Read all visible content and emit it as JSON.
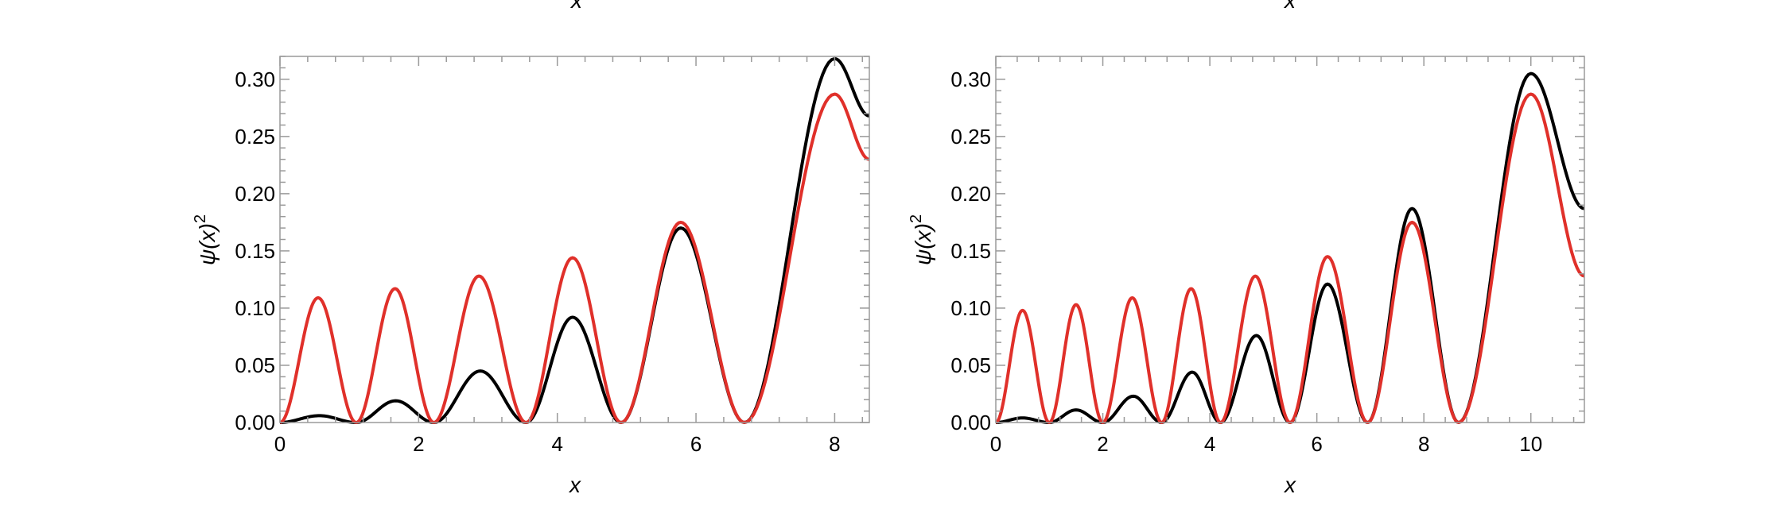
{
  "chart_data": [
    {
      "type": "line",
      "xlabel": "x",
      "ylabel": "ψ(x)",
      "ylabel_superscript": "2",
      "top_label": "x",
      "xlim": [
        0,
        8.5
      ],
      "ylim": [
        0,
        0.32
      ],
      "xticks": [
        0,
        2,
        4,
        6,
        8
      ],
      "xtick_labels": [
        "0",
        "2",
        "4",
        "6",
        "8"
      ],
      "yticks": [
        0,
        0.05,
        0.1,
        0.15,
        0.2,
        0.25,
        0.3
      ],
      "ytick_labels": [
        "0.00",
        "0.05",
        "0.10",
        "0.15",
        "0.20",
        "0.25",
        "0.30"
      ],
      "grid": false,
      "series": [
        {
          "color": "#000000",
          "x": [
            0,
            0.57,
            1.1,
            1.67,
            2.22,
            2.89,
            3.55,
            4.22,
            4.92,
            5.78,
            6.7,
            8.0,
            8.5
          ],
          "y": [
            0,
            0.006,
            0,
            0.019,
            0,
            0.045,
            0,
            0.092,
            0,
            0.17,
            0,
            0.318,
            0.268
          ]
        },
        {
          "color": "#e0302a",
          "x": [
            0,
            0.55,
            1.1,
            1.66,
            2.22,
            2.87,
            3.55,
            4.22,
            4.92,
            5.78,
            6.7,
            8.0,
            8.5
          ],
          "y": [
            0,
            0.109,
            0,
            0.117,
            0,
            0.128,
            0,
            0.144,
            0,
            0.175,
            0,
            0.287,
            0.23
          ]
        }
      ]
    },
    {
      "type": "line",
      "xlabel": "x",
      "ylabel": "ψ(x)",
      "ylabel_superscript": "2",
      "top_label": "x",
      "xlim": [
        0,
        11
      ],
      "ylim": [
        0,
        0.32
      ],
      "xticks": [
        0,
        2,
        4,
        6,
        8,
        10
      ],
      "xtick_labels": [
        "0",
        "2",
        "4",
        "6",
        "8",
        "10"
      ],
      "yticks": [
        0,
        0.05,
        0.1,
        0.15,
        0.2,
        0.25,
        0.3
      ],
      "ytick_labels": [
        "0.00",
        "0.05",
        "0.10",
        "0.15",
        "0.20",
        "0.25",
        "0.30"
      ],
      "grid": false,
      "series": [
        {
          "color": "#000000",
          "x": [
            0,
            0.5,
            1.0,
            1.5,
            2.0,
            2.57,
            3.1,
            3.67,
            4.2,
            4.87,
            5.5,
            6.2,
            6.95,
            7.78,
            8.65,
            10.0,
            11.0
          ],
          "y": [
            0,
            0.004,
            0,
            0.011,
            0,
            0.023,
            0,
            0.044,
            0,
            0.076,
            0,
            0.121,
            0,
            0.187,
            0,
            0.305,
            0.187
          ]
        },
        {
          "color": "#e0302a",
          "x": [
            0,
            0.5,
            1.0,
            1.5,
            2.0,
            2.55,
            3.1,
            3.65,
            4.2,
            4.85,
            5.5,
            6.2,
            6.95,
            7.78,
            8.65,
            10.0,
            11.0
          ],
          "y": [
            0,
            0.098,
            0,
            0.103,
            0,
            0.109,
            0,
            0.117,
            0,
            0.128,
            0,
            0.145,
            0,
            0.175,
            0,
            0.287,
            0.128
          ]
        }
      ]
    }
  ]
}
